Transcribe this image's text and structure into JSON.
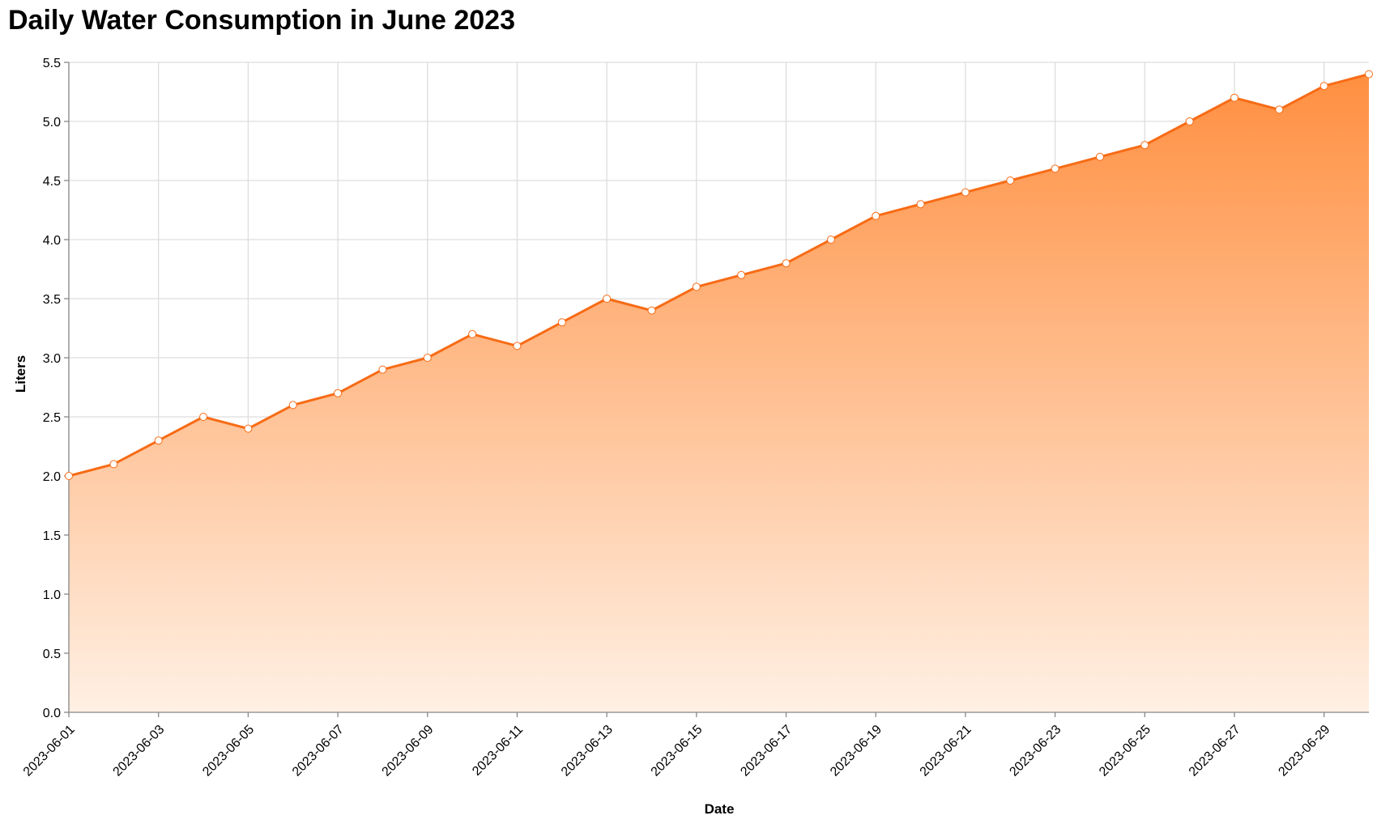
{
  "chart_data": {
    "type": "area",
    "title": "Daily Water Consumption in June 2023",
    "xlabel": "Date",
    "ylabel": "Liters",
    "ylim": [
      0,
      5.5
    ],
    "y_ticks": [
      "0.0",
      "0.5",
      "1.0",
      "1.5",
      "2.0",
      "2.5",
      "3.0",
      "3.5",
      "4.0",
      "4.5",
      "5.0",
      "5.5"
    ],
    "x_tick_labels": [
      "2023-06-01",
      "2023-06-03",
      "2023-06-05",
      "2023-06-07",
      "2023-06-09",
      "2023-06-11",
      "2023-06-13",
      "2023-06-15",
      "2023-06-17",
      "2023-06-19",
      "2023-06-21",
      "2023-06-23",
      "2023-06-25",
      "2023-06-27",
      "2023-06-29"
    ],
    "grid": true,
    "series": [
      {
        "name": "Liters",
        "x": [
          "2023-06-01",
          "2023-06-02",
          "2023-06-03",
          "2023-06-04",
          "2023-06-05",
          "2023-06-06",
          "2023-06-07",
          "2023-06-08",
          "2023-06-09",
          "2023-06-10",
          "2023-06-11",
          "2023-06-12",
          "2023-06-13",
          "2023-06-14",
          "2023-06-15",
          "2023-06-16",
          "2023-06-17",
          "2023-06-18",
          "2023-06-19",
          "2023-06-20",
          "2023-06-21",
          "2023-06-22",
          "2023-06-23",
          "2023-06-24",
          "2023-06-25",
          "2023-06-26",
          "2023-06-27",
          "2023-06-28",
          "2023-06-29",
          "2023-06-30"
        ],
        "values": [
          2.0,
          2.1,
          2.3,
          2.5,
          2.4,
          2.6,
          2.7,
          2.9,
          3.0,
          3.2,
          3.1,
          3.3,
          3.5,
          3.4,
          3.6,
          3.7,
          3.8,
          4.0,
          4.2,
          4.3,
          4.4,
          4.5,
          4.6,
          4.7,
          4.8,
          5.0,
          5.2,
          5.1,
          5.3,
          5.4
        ]
      }
    ],
    "colors": {
      "line": "#f76b15",
      "fill_top": "#ff8f40",
      "fill_bottom": "#fff0e4",
      "point_fill": "#ffffff"
    }
  }
}
